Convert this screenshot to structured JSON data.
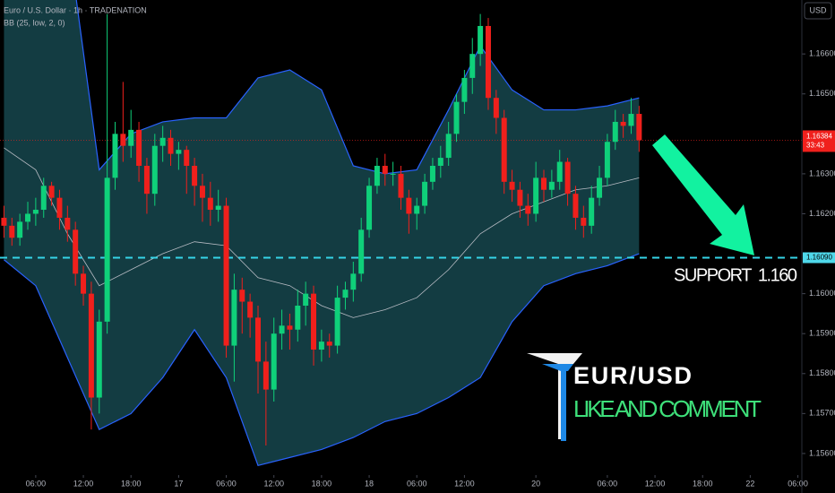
{
  "chart_data": {
    "type": "candlestick",
    "title": "Euro / U.S. Dollar · 1h · TRADENATION",
    "indicator": "BB (25, low, 2, 0)",
    "currency": "USD",
    "up_color": "#0fd07a",
    "down_color": "#f0201c",
    "open": [
      1.1619,
      1.1617,
      1.1614,
      1.1618,
      1.162,
      1.1621,
      1.1627,
      1.1624,
      1.1619,
      1.1616,
      1.1605,
      1.16,
      1.1574,
      1.1593,
      1.1629,
      1.164,
      1.1637,
      1.1641,
      1.1632,
      1.1625,
      1.1637,
      1.1639,
      1.1635,
      1.1636,
      1.1632,
      1.1627,
      1.1624,
      1.1621,
      1.1622,
      1.1587,
      1.1601,
      1.1598,
      1.1594,
      1.1583,
      1.1576,
      1.159,
      1.1592,
      1.1591,
      1.1597,
      1.16,
      1.1586,
      1.1588,
      1.1587,
      1.1599,
      1.1601,
      1.1605,
      1.1616,
      1.1627,
      1.1632,
      1.163,
      1.163,
      1.1624,
      1.162,
      1.1622,
      1.1628,
      1.1632,
      1.1634,
      1.164,
      1.1648,
      1.1654,
      1.166,
      1.1667,
      1.1649,
      1.1644,
      1.1628,
      1.1626,
      1.1622,
      1.162,
      1.1629,
      1.1626,
      1.1628,
      1.1633,
      1.1625,
      1.1619,
      1.1617,
      1.1624,
      1.1629,
      1.1638,
      1.1643,
      1.1642,
      1.1645
    ],
    "high": [
      1.1622,
      1.1619,
      1.162,
      1.1623,
      1.1624,
      1.1629,
      1.1628,
      1.1626,
      1.1622,
      1.1618,
      1.1607,
      1.1603,
      1.1596,
      1.167,
      1.1643,
      1.1653,
      1.1646,
      1.1643,
      1.1634,
      1.164,
      1.1642,
      1.1641,
      1.1638,
      1.1637,
      1.1634,
      1.163,
      1.1628,
      1.1626,
      1.1624,
      1.1605,
      1.1604,
      1.16,
      1.1597,
      1.1588,
      1.1594,
      1.1596,
      1.1595,
      1.1601,
      1.1603,
      1.1602,
      1.1591,
      1.159,
      1.1602,
      1.1603,
      1.1608,
      1.1619,
      1.1629,
      1.1634,
      1.1635,
      1.1633,
      1.1632,
      1.1626,
      1.1624,
      1.163,
      1.1634,
      1.1637,
      1.1643,
      1.165,
      1.1656,
      1.1664,
      1.167,
      1.1669,
      1.1651,
      1.1646,
      1.1631,
      1.1628,
      1.1625,
      1.1633,
      1.1631,
      1.1631,
      1.1636,
      1.1634,
      1.1627,
      1.1622,
      1.1627,
      1.1632,
      1.164,
      1.1646,
      1.1645,
      1.1649,
      1.1647
    ],
    "low": [
      1.1614,
      1.1612,
      1.1612,
      1.1616,
      1.1617,
      1.1619,
      1.1622,
      1.1616,
      1.1613,
      1.1602,
      1.1597,
      1.1566,
      1.157,
      1.159,
      1.1626,
      1.1633,
      1.1634,
      1.1628,
      1.162,
      1.1622,
      1.1633,
      1.1632,
      1.1631,
      1.1625,
      1.1622,
      1.1618,
      1.1617,
      1.1618,
      1.1584,
      1.1578,
      1.159,
      1.1589,
      1.1575,
      1.1562,
      1.1573,
      1.1586,
      1.1586,
      1.1588,
      1.1592,
      1.1582,
      1.1583,
      1.1584,
      1.1585,
      1.1596,
      1.1598,
      1.1603,
      1.1614,
      1.1625,
      1.1627,
      1.1627,
      1.1621,
      1.1615,
      1.1616,
      1.162,
      1.1626,
      1.1629,
      1.1632,
      1.1638,
      1.1645,
      1.165,
      1.1657,
      1.1646,
      1.164,
      1.1625,
      1.1623,
      1.1619,
      1.1617,
      1.1618,
      1.1623,
      1.1624,
      1.1626,
      1.1622,
      1.1616,
      1.1614,
      1.1615,
      1.1622,
      1.1627,
      1.1636,
      1.1639,
      1.164,
      1.16355
    ],
    "close": [
      1.1617,
      1.1614,
      1.1618,
      1.162,
      1.1621,
      1.1627,
      1.1624,
      1.1619,
      1.1616,
      1.1605,
      1.16,
      1.1574,
      1.1593,
      1.1629,
      1.164,
      1.1637,
      1.1641,
      1.1632,
      1.1625,
      1.1637,
      1.1639,
      1.1635,
      1.1636,
      1.1632,
      1.1627,
      1.1624,
      1.1621,
      1.1622,
      1.1587,
      1.1601,
      1.1598,
      1.1594,
      1.1583,
      1.1576,
      1.159,
      1.1592,
      1.1591,
      1.1597,
      1.16,
      1.1586,
      1.1588,
      1.1587,
      1.1599,
      1.1601,
      1.1605,
      1.1616,
      1.1627,
      1.1632,
      1.163,
      1.163,
      1.1624,
      1.162,
      1.1622,
      1.1628,
      1.1632,
      1.1634,
      1.164,
      1.1648,
      1.1654,
      1.166,
      1.1667,
      1.1649,
      1.1644,
      1.1628,
      1.1626,
      1.1622,
      1.162,
      1.1629,
      1.1626,
      1.1628,
      1.1633,
      1.1625,
      1.1619,
      1.1617,
      1.1624,
      1.1629,
      1.1638,
      1.1643,
      1.1642,
      1.1645,
      1.16384
    ],
    "bands": {
      "x": [
        0,
        4,
        8,
        12,
        16,
        20,
        24,
        28,
        32,
        36,
        40,
        44,
        48,
        52,
        56,
        60,
        64,
        68,
        72,
        76,
        80
      ],
      "upper": [
        1.169,
        1.1692,
        1.169,
        1.1631,
        1.164,
        1.1643,
        1.1644,
        1.1644,
        1.1654,
        1.1656,
        1.1651,
        1.1632,
        1.163,
        1.1631,
        1.1646,
        1.1662,
        1.1651,
        1.1646,
        1.1646,
        1.1647,
        1.1649
      ],
      "middle": [
        1.16365,
        1.1631,
        1.1615,
        1.1602,
        1.1606,
        1.161,
        1.1613,
        1.1612,
        1.1604,
        1.1602,
        1.1597,
        1.1594,
        1.1596,
        1.1599,
        1.1606,
        1.1615,
        1.162,
        1.1623,
        1.1626,
        1.1627,
        1.1629
      ],
      "lower": [
        1.16085,
        1.1602,
        1.1584,
        1.1566,
        1.157,
        1.1579,
        1.1591,
        1.1579,
        1.1557,
        1.1559,
        1.1561,
        1.1564,
        1.1568,
        1.157,
        1.1574,
        1.1579,
        1.1593,
        1.1602,
        1.1605,
        1.1607,
        1.161
      ],
      "line_color": "#2962ff",
      "middle_color": "#b8bcc4",
      "fill": "#133c42"
    },
    "xlim": [
      -0.5,
      100.5
    ],
    "ylim": [
      1.15546,
      1.16735
    ],
    "xticks": [
      {
        "value": 4,
        "label": "06:00"
      },
      {
        "value": 10,
        "label": "12:00"
      },
      {
        "value": 16,
        "label": "18:00"
      },
      {
        "value": 22,
        "label": "17"
      },
      {
        "value": 28,
        "label": "06:00"
      },
      {
        "value": 34,
        "label": "12:00"
      },
      {
        "value": 40,
        "label": "18:00"
      },
      {
        "value": 46,
        "label": "18"
      },
      {
        "value": 52,
        "label": "06:00"
      },
      {
        "value": 58,
        "label": "12:00"
      },
      {
        "value": 67,
        "label": "20"
      },
      {
        "value": 76,
        "label": "06:00"
      },
      {
        "value": 82,
        "label": "12:00"
      },
      {
        "value": 88,
        "label": "18:00"
      },
      {
        "value": 94,
        "label": "22"
      },
      {
        "value": 100,
        "label": "06:00"
      }
    ],
    "yticks": [
      {
        "value": 1.166,
        "label": "1.16600"
      },
      {
        "value": 1.165,
        "label": "1.16500"
      },
      {
        "value": 1.163,
        "label": "1.16300"
      },
      {
        "value": 1.162,
        "label": "1.16200"
      },
      {
        "value": 1.16,
        "label": "1.16000"
      },
      {
        "value": 1.159,
        "label": "1.15900"
      },
      {
        "value": 1.158,
        "label": "1.15800"
      },
      {
        "value": 1.157,
        "label": "1.15700"
      },
      {
        "value": 1.156,
        "label": "1.15600"
      }
    ],
    "last_price": {
      "value": 1.16384,
      "label": "1.16384"
    },
    "countdown": "33:43",
    "support": {
      "value": 1.1609,
      "label": "1.16090"
    },
    "support_text": "SUPPORT  1.160",
    "brand": "EUR/USD",
    "call_to_action": "LIKE AND COMMENT"
  }
}
